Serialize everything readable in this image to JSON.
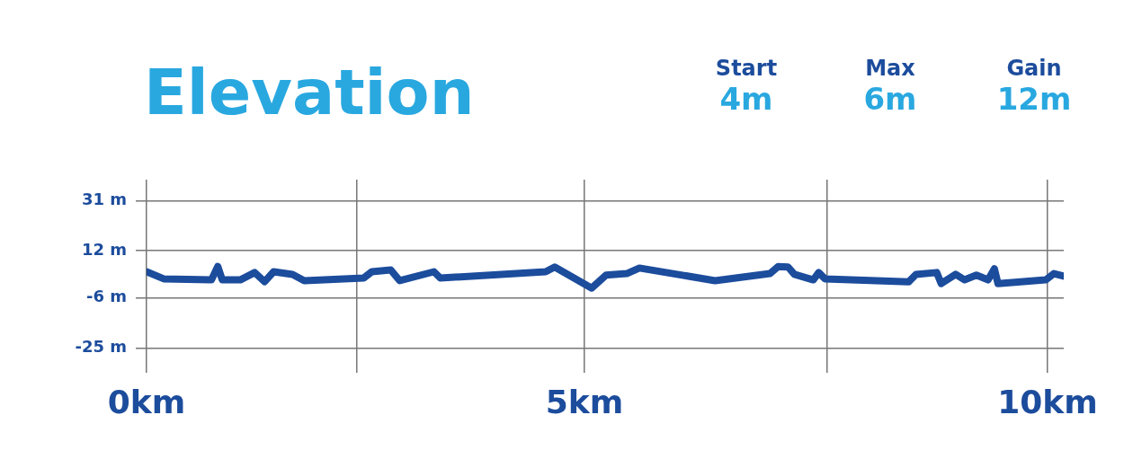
{
  "chart_data": {
    "type": "line",
    "title": "Elevation",
    "annotations": [
      "Start",
      "4m",
      "Max",
      "6m",
      "Gain",
      "12m"
    ],
    "x": [
      0,
      0.19,
      0.72,
      0.79,
      0.84,
      1.04,
      1.2,
      1.31,
      1.41,
      1.62,
      1.75,
      2.41,
      2.5,
      2.71,
      2.81,
      3.19,
      3.26,
      4.43,
      4.53,
      4.94,
      5.1,
      5.33,
      5.47,
      6.31,
      6.92,
      7.01,
      7.12,
      7.19,
      7.4,
      7.46,
      7.53,
      8.46,
      8.54,
      8.77,
      8.82,
      8.98,
      9.08,
      9.21,
      9.34,
      9.41,
      9.45,
      9.98,
      10.07,
      10.18
    ],
    "series": [
      {
        "color": "#1c4c9c",
        "values": [
          4,
          1.3,
          0.9,
          6,
          0.9,
          0.9,
          3.7,
          0.2,
          4,
          3,
          0.6,
          1.6,
          4,
          4.7,
          0.6,
          4,
          1.6,
          4,
          5.8,
          -2.2,
          2.7,
          3.3,
          5.4,
          0.6,
          3.3,
          6,
          5.8,
          3,
          0.9,
          3.7,
          1.3,
          0.2,
          3,
          3.7,
          -0.5,
          3,
          0.9,
          2.7,
          0.9,
          5.1,
          -0.5,
          0.9,
          3.3,
          2.3
        ]
      }
    ],
    "xlim": [
      0,
      10.18
    ],
    "xticks": [
      {
        "value": 0,
        "label": "0km"
      },
      {
        "value": 2.33,
        "label": null
      },
      {
        "value": 4.86,
        "label": "5km"
      },
      {
        "value": 7.55,
        "label": null
      },
      {
        "value": 10,
        "label": "10km"
      }
    ],
    "ylim": [
      -31,
      39
    ],
    "yticks": [
      {
        "value": -25,
        "label": "-25 m"
      },
      {
        "value": -6,
        "label": "-6 m"
      },
      {
        "value": 12,
        "label": "12 m"
      },
      {
        "value": 31,
        "label": "31 m"
      }
    ],
    "grid": true,
    "marker": "none",
    "line_style": "solid"
  }
}
